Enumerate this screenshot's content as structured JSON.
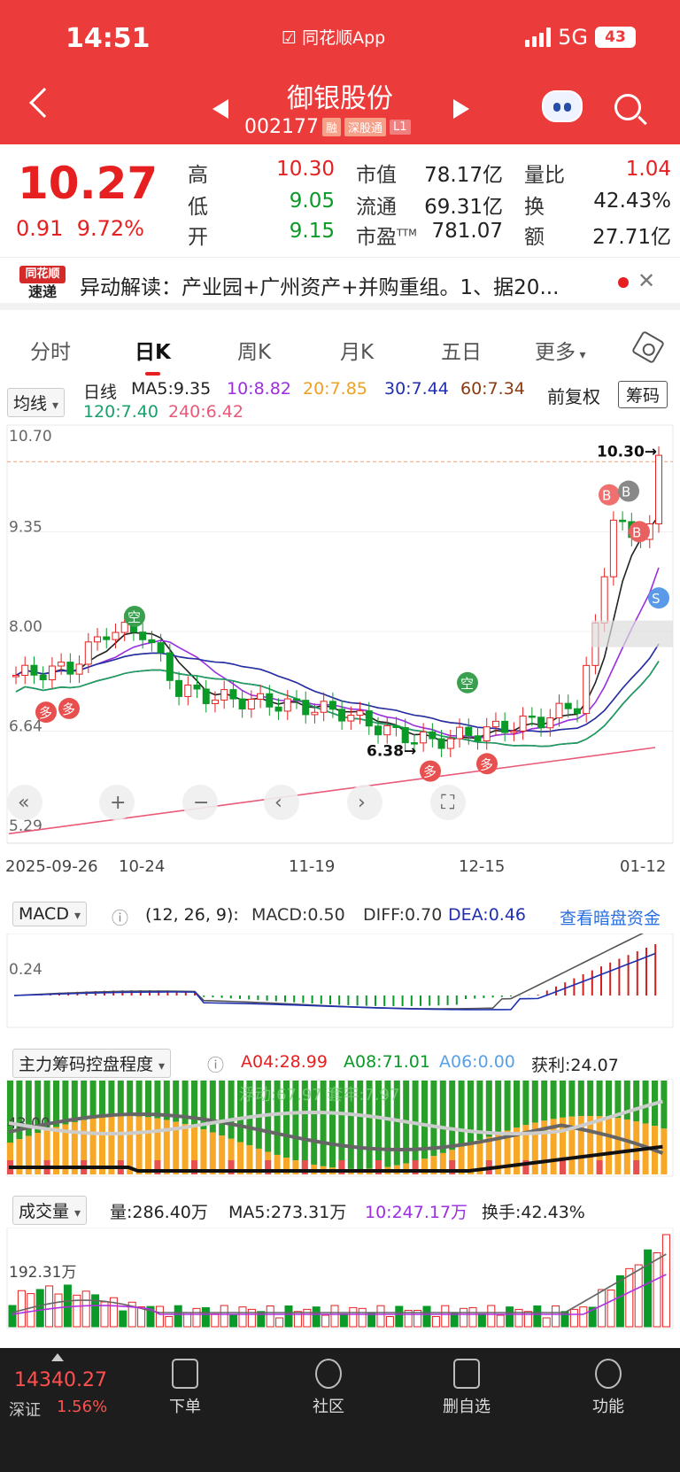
{
  "status": {
    "time": "14:51",
    "app": "同花顺App",
    "network": "5G",
    "battery": "43"
  },
  "header": {
    "name": "御银股份",
    "code": "002177",
    "tags": [
      "融",
      "深股通",
      "L1"
    ]
  },
  "quote": {
    "price": "10.27",
    "change": "0.91",
    "change_pct": "9.72%",
    "cells": [
      {
        "label": "高",
        "value": "10.30",
        "color": "red"
      },
      {
        "label": "低",
        "value": "9.05",
        "color": "green"
      },
      {
        "label": "开",
        "value": "9.15",
        "color": "green"
      },
      {
        "label": "市值",
        "value": "78.17亿"
      },
      {
        "label": "流通",
        "value": "69.31亿"
      },
      {
        "label": "市盈",
        "sup": "TTM",
        "value": "781.07"
      },
      {
        "label": "量比",
        "value": "1.04",
        "color": "red"
      },
      {
        "label": "换",
        "value": "42.43%"
      },
      {
        "label": "额",
        "value": "27.71亿"
      }
    ]
  },
  "news": {
    "logo_top": "同花顺",
    "logo_bottom": "速递",
    "text": "异动解读：产业园+广州资产+并购重组。1、据20..."
  },
  "tabs": [
    "分时",
    "日K",
    "周K",
    "月K",
    "五日",
    "更多"
  ],
  "ma": {
    "dropdown": "均线",
    "period": "日线",
    "items": [
      {
        "text": "MA5:9.35",
        "color": "#222"
      },
      {
        "text": "10:8.82",
        "color": "#9a2ee0"
      },
      {
        "text": "20:7.85",
        "color": "#f0a020"
      },
      {
        "text": "30:7.44",
        "color": "#1f2fb0"
      },
      {
        "text": "60:7.34",
        "color": "#8a3a10"
      },
      {
        "text": "120:7.40",
        "color": "#19a06a"
      },
      {
        "text": "240:6.42",
        "color": "#e85a78"
      }
    ],
    "fuquan": "前复权",
    "chouma": "筹码"
  },
  "kline": {
    "y_labels": [
      "10.70",
      "9.35",
      "8.00",
      "6.64",
      "5.29"
    ],
    "high_label": "10.30→",
    "low_label": "6.38→",
    "x_labels": [
      "2025-09-26",
      "10-24",
      "11-19",
      "12-15",
      "01-12"
    ],
    "signals": [
      "多",
      "多",
      "空",
      "空",
      "多",
      "多",
      "B",
      "B",
      "B",
      "S"
    ]
  },
  "macd": {
    "dropdown": "MACD",
    "params": "(12, 26, 9):",
    "macd": "MACD:0.50",
    "diff": "DIFF:0.70",
    "dea": "DEA:0.46",
    "link": "查看暗盘资金",
    "y_label": "0.24"
  },
  "chip": {
    "dropdown": "主力筹码控盘程度",
    "a04": "A04:28.99",
    "a08": "A08:71.01",
    "a06": "A06:0.00",
    "profit": "获利:24.07",
    "overlay": "浮动:67.97  套牢:7.97",
    "y_label": "43.00"
  },
  "volume": {
    "dropdown": "成交量",
    "vol": "量:286.40万",
    "ma5": "MA5:273.31万",
    "ma10": "10:247.17万",
    "turnover": "换手:42.43%",
    "y_label": "192.31万"
  },
  "bottom": {
    "index_value": "14340.27",
    "index_name": "深证",
    "index_pct": "1.56%",
    "items": [
      "下单",
      "社区",
      "删自选",
      "功能"
    ]
  },
  "colors": {
    "up": "#e62020",
    "down": "#0a9a28",
    "header": "#ec3b3b"
  }
}
